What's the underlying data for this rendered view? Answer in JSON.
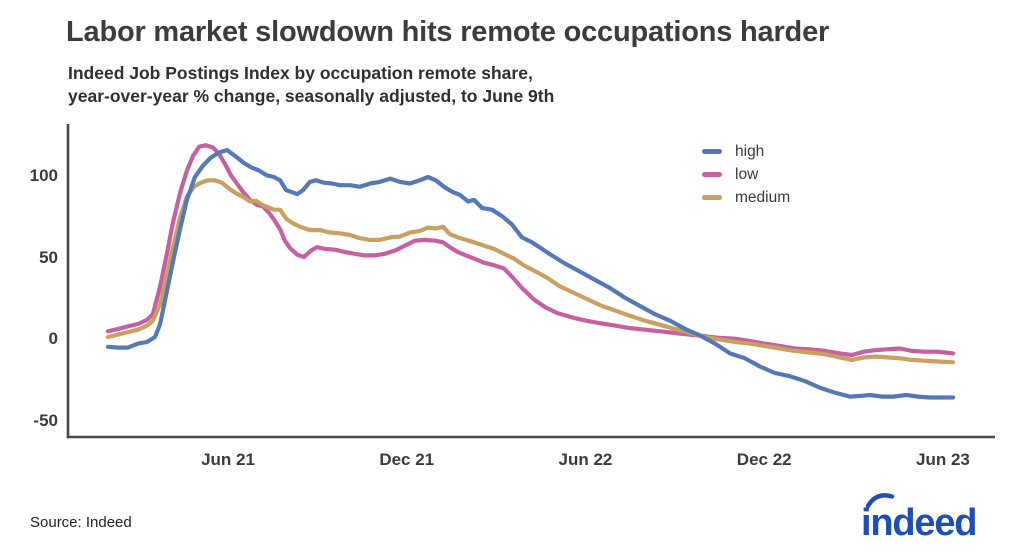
{
  "header": {
    "title": "Labor market slowdown hits remote occupations harder",
    "subtitle_line1": "Indeed Job Postings Index by occupation remote share,",
    "subtitle_line2": "year-over-year % change, seasonally adjusted, to June 9th"
  },
  "footer": {
    "source": "Source: Indeed",
    "logo_text": "indeed",
    "logo_color": "#1d4fb8"
  },
  "chart_data": {
    "type": "line",
    "title": "Labor market slowdown hits remote occupations harder",
    "subtitle": "Indeed Job Postings Index by occupation remote share, year-over-year % change, seasonally adjusted, to June 9th",
    "x_unit": "months since Jan 2021",
    "xlim": [
      -0.4,
      30.8
    ],
    "ylim": [
      -59,
      132
    ],
    "grid": false,
    "legend_position": "top-right",
    "axis_color": "#484848",
    "text_color": "#3b3b3b",
    "yticks": [
      {
        "label": "100",
        "value": 100
      },
      {
        "label": "50",
        "value": 50
      },
      {
        "label": "0",
        "value": 0
      },
      {
        "label": "-50",
        "value": -50
      }
    ],
    "xticks": [
      {
        "label": "Jun 21",
        "value": 5
      },
      {
        "label": "Dec 21",
        "value": 11
      },
      {
        "label": "Jun 22",
        "value": 17
      },
      {
        "label": "Dec 22",
        "value": 23
      },
      {
        "label": "Jun 23",
        "value": 29
      }
    ],
    "series": [
      {
        "name": "high",
        "color": "#5579b7",
        "points": [
          [
            0.97,
            -4
          ],
          [
            1.31,
            -4.5
          ],
          [
            1.64,
            -4.5
          ],
          [
            1.98,
            -2
          ],
          [
            2.28,
            -1
          ],
          [
            2.55,
            2
          ],
          [
            2.72,
            10
          ],
          [
            2.95,
            30
          ],
          [
            3.15,
            48
          ],
          [
            3.39,
            68
          ],
          [
            3.62,
            86
          ],
          [
            3.89,
            100
          ],
          [
            4.16,
            107
          ],
          [
            4.43,
            112
          ],
          [
            4.7,
            115
          ],
          [
            4.97,
            116.5
          ],
          [
            5.23,
            113
          ],
          [
            5.5,
            109
          ],
          [
            5.77,
            106
          ],
          [
            6.04,
            104
          ],
          [
            6.31,
            101
          ],
          [
            6.54,
            100
          ],
          [
            6.75,
            98
          ],
          [
            6.95,
            92
          ],
          [
            7.11,
            91
          ],
          [
            7.32,
            89.5
          ],
          [
            7.52,
            92
          ],
          [
            7.75,
            97
          ],
          [
            7.95,
            98
          ],
          [
            8.22,
            96.5
          ],
          [
            8.49,
            96
          ],
          [
            8.76,
            95
          ],
          [
            9.1,
            95
          ],
          [
            9.43,
            94
          ],
          [
            9.77,
            96
          ],
          [
            10.1,
            97
          ],
          [
            10.44,
            99
          ],
          [
            10.77,
            97
          ],
          [
            11.11,
            96
          ],
          [
            11.44,
            98
          ],
          [
            11.71,
            100
          ],
          [
            11.98,
            98
          ],
          [
            12.25,
            94
          ],
          [
            12.52,
            91
          ],
          [
            12.79,
            89
          ],
          [
            13.06,
            85
          ],
          [
            13.26,
            86
          ],
          [
            13.53,
            81
          ],
          [
            13.86,
            80
          ],
          [
            14.2,
            76
          ],
          [
            14.53,
            71
          ],
          [
            14.87,
            63
          ],
          [
            15.2,
            60
          ],
          [
            15.54,
            56
          ],
          [
            15.87,
            52
          ],
          [
            16.31,
            47
          ],
          [
            16.82,
            42
          ],
          [
            17.32,
            37
          ],
          [
            17.82,
            32
          ],
          [
            18.33,
            26
          ],
          [
            18.83,
            21
          ],
          [
            19.33,
            16
          ],
          [
            19.84,
            12
          ],
          [
            20.34,
            7
          ],
          [
            20.84,
            3
          ],
          [
            21.35,
            -2
          ],
          [
            21.85,
            -8
          ],
          [
            22.35,
            -11
          ],
          [
            22.85,
            -16
          ],
          [
            23.36,
            -20
          ],
          [
            23.86,
            -22
          ],
          [
            24.37,
            -25
          ],
          [
            24.87,
            -29
          ],
          [
            25.37,
            -32
          ],
          [
            25.88,
            -34.5
          ],
          [
            26.28,
            -34
          ],
          [
            26.55,
            -33.5
          ],
          [
            26.95,
            -34.5
          ],
          [
            27.35,
            -34.5
          ],
          [
            27.76,
            -33.5
          ],
          [
            28.16,
            -34.5
          ],
          [
            28.56,
            -35
          ],
          [
            28.93,
            -35
          ],
          [
            29.34,
            -35
          ]
        ]
      },
      {
        "name": "low",
        "color": "#c6609f",
        "points": [
          [
            0.97,
            5.5
          ],
          [
            1.31,
            7
          ],
          [
            1.64,
            8.5
          ],
          [
            1.98,
            10
          ],
          [
            2.28,
            12.5
          ],
          [
            2.48,
            16
          ],
          [
            2.72,
            33
          ],
          [
            2.95,
            53
          ],
          [
            3.15,
            72
          ],
          [
            3.39,
            90
          ],
          [
            3.62,
            104
          ],
          [
            3.83,
            113
          ],
          [
            4.03,
            118.5
          ],
          [
            4.26,
            119.5
          ],
          [
            4.5,
            118
          ],
          [
            4.7,
            114
          ],
          [
            4.9,
            108
          ],
          [
            5.1,
            101
          ],
          [
            5.3,
            96
          ],
          [
            5.5,
            91
          ],
          [
            5.74,
            86
          ],
          [
            5.97,
            83
          ],
          [
            6.17,
            82
          ],
          [
            6.38,
            78
          ],
          [
            6.54,
            74
          ],
          [
            6.75,
            68
          ],
          [
            6.91,
            61
          ],
          [
            7.08,
            56.5
          ],
          [
            7.32,
            52.5
          ],
          [
            7.55,
            51
          ],
          [
            7.79,
            55
          ],
          [
            7.99,
            57
          ],
          [
            8.26,
            56
          ],
          [
            8.59,
            55.5
          ],
          [
            8.93,
            54
          ],
          [
            9.26,
            53
          ],
          [
            9.6,
            52
          ],
          [
            9.93,
            52
          ],
          [
            10.27,
            53
          ],
          [
            10.61,
            55
          ],
          [
            10.94,
            58
          ],
          [
            11.28,
            61
          ],
          [
            11.61,
            61.5
          ],
          [
            11.95,
            61
          ],
          [
            12.22,
            60
          ],
          [
            12.45,
            57
          ],
          [
            12.72,
            54
          ],
          [
            12.99,
            52
          ],
          [
            13.26,
            50
          ],
          [
            13.59,
            47.5
          ],
          [
            13.93,
            46
          ],
          [
            14.26,
            44
          ],
          [
            14.53,
            39
          ],
          [
            14.87,
            32
          ],
          [
            15.27,
            25
          ],
          [
            15.67,
            20
          ],
          [
            16.08,
            16.5
          ],
          [
            16.55,
            14
          ],
          [
            17.02,
            12
          ],
          [
            17.49,
            10.5
          ],
          [
            17.99,
            9
          ],
          [
            18.49,
            7.5
          ],
          [
            19,
            6.5
          ],
          [
            19.5,
            5.5
          ],
          [
            20,
            4.5
          ],
          [
            20.51,
            3.5
          ],
          [
            21.01,
            2.5
          ],
          [
            21.51,
            1.5
          ],
          [
            22.02,
            1
          ],
          [
            22.52,
            -0.5
          ],
          [
            23.02,
            -2
          ],
          [
            23.52,
            -3.5
          ],
          [
            24.03,
            -5
          ],
          [
            24.53,
            -5.5
          ],
          [
            25.03,
            -6.5
          ],
          [
            25.54,
            -8
          ],
          [
            25.94,
            -9
          ],
          [
            26.35,
            -7
          ],
          [
            26.75,
            -6
          ],
          [
            27.15,
            -5.5
          ],
          [
            27.56,
            -5
          ],
          [
            27.96,
            -6.5
          ],
          [
            28.36,
            -7
          ],
          [
            28.83,
            -7
          ],
          [
            29.34,
            -8
          ]
        ]
      },
      {
        "name": "medium",
        "color": "#c9a05f",
        "points": [
          [
            0.97,
            2
          ],
          [
            1.31,
            3.5
          ],
          [
            1.64,
            5
          ],
          [
            1.98,
            6.5
          ],
          [
            2.28,
            9
          ],
          [
            2.48,
            12
          ],
          [
            2.72,
            22
          ],
          [
            2.95,
            40
          ],
          [
            3.15,
            57
          ],
          [
            3.39,
            75
          ],
          [
            3.62,
            88
          ],
          [
            3.86,
            94
          ],
          [
            4.09,
            96.5
          ],
          [
            4.33,
            98
          ],
          [
            4.56,
            98
          ],
          [
            4.8,
            96.5
          ],
          [
            5.03,
            93
          ],
          [
            5.27,
            90
          ],
          [
            5.5,
            88
          ],
          [
            5.74,
            85
          ],
          [
            5.94,
            85.5
          ],
          [
            6.14,
            83
          ],
          [
            6.34,
            81.5
          ],
          [
            6.54,
            80
          ],
          [
            6.75,
            80
          ],
          [
            6.95,
            74.5
          ],
          [
            7.15,
            72
          ],
          [
            7.42,
            69.5
          ],
          [
            7.75,
            67.5
          ],
          [
            8.09,
            67.5
          ],
          [
            8.42,
            66
          ],
          [
            8.76,
            65.5
          ],
          [
            9.1,
            64.5
          ],
          [
            9.43,
            62.5
          ],
          [
            9.77,
            61.5
          ],
          [
            10.1,
            61.5
          ],
          [
            10.44,
            63
          ],
          [
            10.77,
            63.5
          ],
          [
            11.11,
            66
          ],
          [
            11.44,
            67
          ],
          [
            11.71,
            69
          ],
          [
            11.98,
            68.5
          ],
          [
            12.22,
            69.5
          ],
          [
            12.45,
            65
          ],
          [
            12.72,
            63
          ],
          [
            12.99,
            61.5
          ],
          [
            13.26,
            60
          ],
          [
            13.59,
            58
          ],
          [
            13.93,
            56
          ],
          [
            14.26,
            53
          ],
          [
            14.6,
            50
          ],
          [
            14.93,
            46
          ],
          [
            15.34,
            42
          ],
          [
            15.74,
            38
          ],
          [
            16.14,
            33
          ],
          [
            16.61,
            29
          ],
          [
            17.08,
            25
          ],
          [
            17.55,
            21
          ],
          [
            18.03,
            18
          ],
          [
            18.49,
            15
          ],
          [
            19,
            12
          ],
          [
            19.5,
            9.5
          ],
          [
            20,
            7
          ],
          [
            20.51,
            4.5
          ],
          [
            21.01,
            2
          ],
          [
            21.51,
            0.5
          ],
          [
            22.02,
            -1
          ],
          [
            22.52,
            -2
          ],
          [
            23.02,
            -3.5
          ],
          [
            23.52,
            -5
          ],
          [
            24.03,
            -6.5
          ],
          [
            24.53,
            -7.5
          ],
          [
            25.03,
            -8.5
          ],
          [
            25.54,
            -10.5
          ],
          [
            25.94,
            -12
          ],
          [
            26.35,
            -10.5
          ],
          [
            26.75,
            -10
          ],
          [
            27.15,
            -10.5
          ],
          [
            27.56,
            -11
          ],
          [
            27.96,
            -12
          ],
          [
            28.36,
            -12.5
          ],
          [
            28.83,
            -13
          ],
          [
            29.34,
            -13.5
          ]
        ]
      }
    ]
  }
}
